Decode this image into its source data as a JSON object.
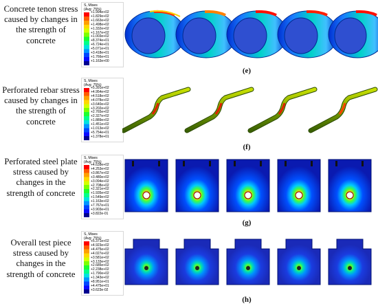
{
  "panels": [
    {
      "id": "e",
      "description": "Concrete tenon stress caused by changes in the strength of concrete",
      "caption": "(e)",
      "legend_title": "S, Mises",
      "legend_subtitle": "(Avg: 75%)",
      "legend_values": [
        "+1.994e+02",
        "+1.829e+02",
        "+1.663e+02",
        "+1.498e+02",
        "+1.332e+02",
        "+1.167e+02",
        "+1.003e+02",
        "+8.374e+01",
        "+6.724e+01",
        "+5.071e+01",
        "+3.418e+01",
        "+1.766e+01",
        "+1.163e+00"
      ]
    },
    {
      "id": "f",
      "description": "Perforated rebar stress caused by changes in the strength of concrete",
      "caption": "(f)",
      "legend_title": "S, Mises",
      "legend_subtitle": "(Avg: 75%)",
      "legend_values": [
        "+5.391e+02",
        "+4.954e+02",
        "+4.518e+02",
        "+4.078e+02",
        "+3.640e+02",
        "+3.202e+02",
        "+2.765e+02",
        "+2.327e+02",
        "+1.889e+02",
        "+1.451e+02",
        "+1.013e+02",
        "+5.754e+01",
        "+1.378e+01"
      ]
    },
    {
      "id": "g",
      "description": "Perforated steel plate stress caused by changes in the strength of concrete",
      "caption": "(g)",
      "legend_title": "S, Mises",
      "legend_subtitle": "(Avg: 75%)",
      "legend_values": [
        "+4.639e+02",
        "+4.253e+02",
        "+3.867e+02",
        "+3.480e+02",
        "+3.094e+02",
        "+2.708e+02",
        "+2.321e+02",
        "+1.935e+02",
        "+1.549e+02",
        "+1.163e+02",
        "+7.767e+01",
        "+3.903e+01",
        "+3.822e-01"
      ]
    },
    {
      "id": "h",
      "description": "Overall test piece stress caused by changes in the strength of concrete",
      "caption": "(h)",
      "legend_title": "S, Mises",
      "legend_subtitle": "(Avg: 75%)",
      "legend_values": [
        "+5.371e+02",
        "+4.923e+02",
        "+4.475e+02",
        "+4.027e+02",
        "+3.581e+02",
        "+3.133e+02",
        "+2.685e+02",
        "+2.238e+02",
        "+1.790e+02",
        "+1.343e+02",
        "+8.951e+01",
        "+4.475e+01",
        "+3.623e-02"
      ]
    }
  ],
  "colors": {
    "legend_scale": [
      "#ff0000",
      "#ff5a00",
      "#ff9f00",
      "#ffd800",
      "#d4ff00",
      "#7dff00",
      "#1cff2f",
      "#00ff8a",
      "#00e2e0",
      "#0095ff",
      "#0046ff",
      "#0a0aff",
      "#000090"
    ]
  }
}
